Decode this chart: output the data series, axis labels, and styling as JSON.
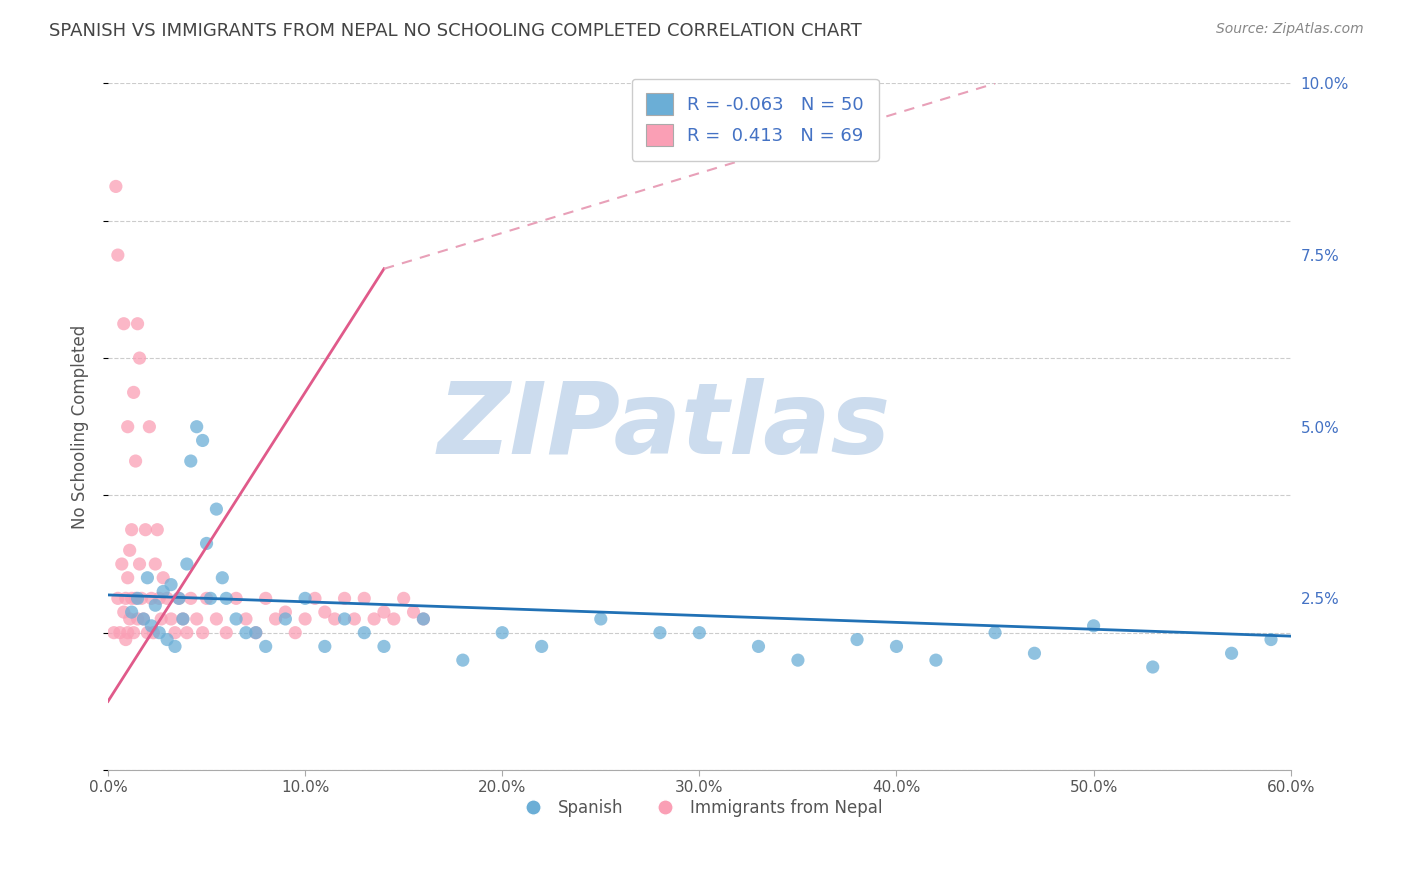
{
  "title": "SPANISH VS IMMIGRANTS FROM NEPAL NO SCHOOLING COMPLETED CORRELATION CHART",
  "source_text": "Source: ZipAtlas.com",
  "ylabel": "No Schooling Completed",
  "x_min": 0.0,
  "x_max": 60.0,
  "y_min": 0.0,
  "y_max": 10.0,
  "x_ticks": [
    0.0,
    10.0,
    20.0,
    30.0,
    40.0,
    50.0,
    60.0
  ],
  "x_tick_labels": [
    "0.0%",
    "10.0%",
    "20.0%",
    "30.0%",
    "40.0%",
    "50.0%",
    "60.0%"
  ],
  "y_ticks_right": [
    0.0,
    2.5,
    5.0,
    7.5,
    10.0
  ],
  "y_tick_labels_right": [
    "",
    "2.5%",
    "5.0%",
    "7.5%",
    "10.0%"
  ],
  "blue_R": -0.063,
  "blue_N": 50,
  "pink_R": 0.413,
  "pink_N": 69,
  "blue_color": "#6baed6",
  "pink_color": "#fa9fb5",
  "blue_line_color": "#2171b5",
  "pink_line_color": "#e05a8a",
  "pink_line_dashed_color": "#e8a0b8",
  "legend_label_blue": "Spanish",
  "legend_label_pink": "Immigrants from Nepal",
  "background_color": "#ffffff",
  "watermark_text": "ZIPatlas",
  "watermark_color": "#ccdcee",
  "blue_x": [
    1.2,
    1.5,
    1.8,
    2.0,
    2.2,
    2.4,
    2.6,
    2.8,
    3.0,
    3.2,
    3.4,
    3.6,
    3.8,
    4.0,
    4.2,
    4.5,
    4.8,
    5.0,
    5.2,
    5.5,
    5.8,
    6.0,
    6.5,
    7.0,
    7.5,
    8.0,
    9.0,
    10.0,
    11.0,
    12.0,
    13.0,
    14.0,
    16.0,
    18.0,
    20.0,
    22.0,
    25.0,
    28.0,
    30.0,
    33.0,
    35.0,
    38.0,
    40.0,
    42.0,
    45.0,
    47.0,
    50.0,
    53.0,
    57.0,
    59.0
  ],
  "blue_y": [
    2.3,
    2.5,
    2.2,
    2.8,
    2.1,
    2.4,
    2.0,
    2.6,
    1.9,
    2.7,
    1.8,
    2.5,
    2.2,
    3.0,
    4.5,
    5.0,
    4.8,
    3.3,
    2.5,
    3.8,
    2.8,
    2.5,
    2.2,
    2.0,
    2.0,
    1.8,
    2.2,
    2.5,
    1.8,
    2.2,
    2.0,
    1.8,
    2.2,
    1.6,
    2.0,
    1.8,
    2.2,
    2.0,
    2.0,
    1.8,
    1.6,
    1.9,
    1.8,
    1.6,
    2.0,
    1.7,
    2.1,
    1.5,
    1.7,
    1.9
  ],
  "pink_x": [
    0.3,
    0.4,
    0.5,
    0.6,
    0.7,
    0.8,
    0.8,
    0.9,
    0.9,
    1.0,
    1.0,
    1.0,
    1.1,
    1.1,
    1.2,
    1.2,
    1.3,
    1.3,
    1.4,
    1.4,
    1.5,
    1.5,
    1.6,
    1.6,
    1.7,
    1.8,
    1.9,
    2.0,
    2.1,
    2.2,
    2.3,
    2.4,
    2.5,
    2.6,
    2.7,
    2.8,
    3.0,
    3.2,
    3.4,
    3.6,
    3.8,
    4.0,
    4.2,
    4.5,
    4.8,
    5.0,
    5.5,
    6.0,
    6.5,
    7.0,
    7.5,
    8.0,
    8.5,
    9.0,
    9.5,
    10.0,
    10.5,
    11.0,
    11.5,
    12.0,
    12.5,
    13.0,
    13.5,
    14.0,
    14.5,
    15.0,
    15.5,
    16.0,
    0.5
  ],
  "pink_y": [
    2.0,
    8.5,
    2.5,
    2.0,
    3.0,
    2.3,
    6.5,
    1.9,
    2.5,
    5.0,
    2.0,
    2.8,
    2.2,
    3.2,
    2.5,
    3.5,
    5.5,
    2.0,
    4.5,
    2.5,
    6.5,
    2.2,
    3.0,
    6.0,
    2.5,
    2.2,
    3.5,
    2.0,
    5.0,
    2.5,
    2.0,
    3.0,
    3.5,
    2.5,
    2.2,
    2.8,
    2.5,
    2.2,
    2.0,
    2.5,
    2.2,
    2.0,
    2.5,
    2.2,
    2.0,
    2.5,
    2.2,
    2.0,
    2.5,
    2.2,
    2.0,
    2.5,
    2.2,
    2.3,
    2.0,
    2.2,
    2.5,
    2.3,
    2.2,
    2.5,
    2.2,
    2.5,
    2.2,
    2.3,
    2.2,
    2.5,
    2.3,
    2.2,
    7.5
  ],
  "pink_trend_x_start": 0.0,
  "pink_trend_x_solid_end": 14.0,
  "pink_trend_x_dashed_end": 45.0
}
